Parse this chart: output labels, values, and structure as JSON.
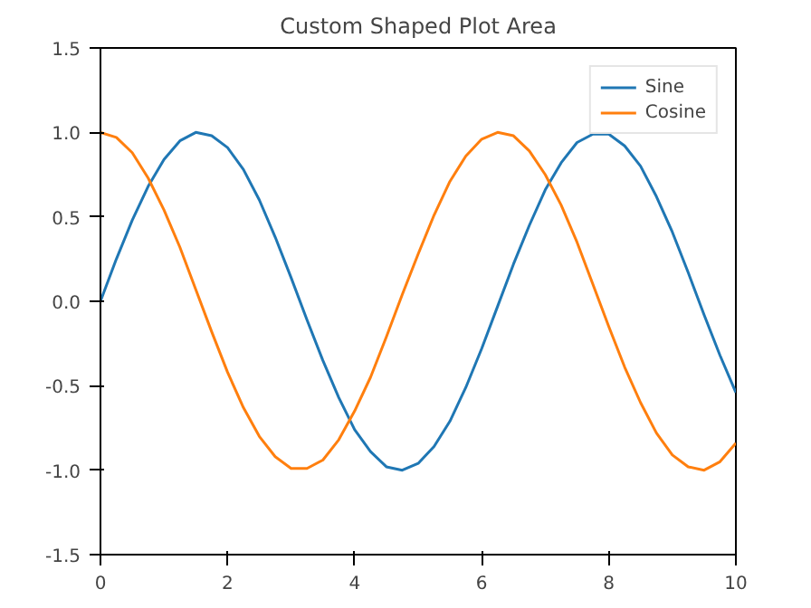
{
  "chart_data": {
    "type": "line",
    "title": "Custom Shaped Plot Area",
    "x": [
      0,
      0.25,
      0.5,
      0.75,
      1,
      1.25,
      1.5,
      1.75,
      2,
      2.25,
      2.5,
      2.75,
      3,
      3.25,
      3.5,
      3.75,
      4,
      4.25,
      4.5,
      4.75,
      5,
      5.25,
      5.5,
      5.75,
      6,
      6.25,
      6.5,
      6.75,
      7,
      7.25,
      7.5,
      7.75,
      8,
      8.25,
      8.5,
      8.75,
      9,
      9.25,
      9.5,
      9.75,
      10
    ],
    "series": [
      {
        "name": "Sine",
        "color": "#1f77b4",
        "values": [
          0,
          0.25,
          0.48,
          0.68,
          0.84,
          0.95,
          1.0,
          0.98,
          0.91,
          0.78,
          0.6,
          0.38,
          0.14,
          -0.11,
          -0.35,
          -0.57,
          -0.76,
          -0.89,
          -0.98,
          -1.0,
          -0.96,
          -0.86,
          -0.71,
          -0.51,
          -0.28,
          -0.03,
          0.22,
          0.45,
          0.66,
          0.82,
          0.94,
          0.99,
          0.99,
          0.92,
          0.8,
          0.62,
          0.41,
          0.17,
          -0.08,
          -0.32,
          -0.54
        ]
      },
      {
        "name": "Cosine",
        "color": "#ff7f0e",
        "values": [
          1.0,
          0.97,
          0.88,
          0.73,
          0.54,
          0.32,
          0.07,
          -0.18,
          -0.42,
          -0.63,
          -0.8,
          -0.92,
          -0.99,
          -0.99,
          -0.94,
          -0.82,
          -0.65,
          -0.45,
          -0.21,
          0.04,
          0.28,
          0.51,
          0.71,
          0.86,
          0.96,
          1.0,
          0.98,
          0.89,
          0.75,
          0.57,
          0.35,
          0.1,
          -0.15,
          -0.39,
          -0.6,
          -0.78,
          -0.91,
          -0.98,
          -1.0,
          -0.95,
          -0.84
        ]
      }
    ],
    "xlim": [
      0,
      10
    ],
    "xticks": [
      0,
      2,
      4,
      6,
      8,
      10
    ],
    "ylim": [
      -1.5,
      1.5
    ],
    "yticks": [
      {
        "value": -1.5,
        "label": "-1.5"
      },
      {
        "value": -1.0,
        "label": "-1.0"
      },
      {
        "value": -0.5,
        "label": "-0.5"
      },
      {
        "value": 0,
        "label": "0.0"
      },
      {
        "value": 0.5,
        "label": "0.5"
      },
      {
        "value": 1.0,
        "label": "1.0"
      },
      {
        "value": 1.5,
        "label": "1.5"
      }
    ],
    "legend": "top right",
    "grid": false
  }
}
